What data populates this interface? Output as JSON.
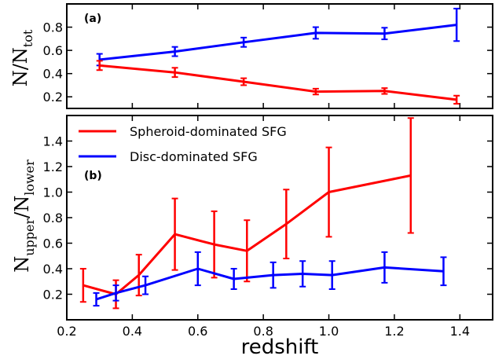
{
  "colors": {
    "spheroid": "#ff0000",
    "disc": "#0000ff",
    "axis": "#000000"
  },
  "xlabel": "redshift",
  "chart_data": [
    {
      "panel": "(a)",
      "type": "line",
      "ylabel_main": "N/N",
      "ylabel_sub": "tot",
      "xlim": [
        0.2,
        1.5
      ],
      "ylim": [
        0.1,
        1.0
      ],
      "xticks": [
        0.2,
        0.4,
        0.6,
        0.8,
        1.0,
        1.2,
        1.4
      ],
      "yticks": [
        0.2,
        0.4,
        0.6,
        0.8
      ],
      "ytick_labels": [
        "0.2",
        "0.4",
        "0.6",
        "0.8"
      ],
      "series": [
        {
          "key": "disc",
          "x": [
            0.3,
            0.53,
            0.74,
            0.96,
            1.17,
            1.39
          ],
          "y": [
            0.52,
            0.59,
            0.67,
            0.75,
            0.745,
            0.82
          ],
          "yerr": [
            0.05,
            0.04,
            0.04,
            0.05,
            0.05,
            0.14
          ]
        },
        {
          "key": "spheroid",
          "x": [
            0.3,
            0.53,
            0.74,
            0.96,
            1.17,
            1.39
          ],
          "y": [
            0.47,
            0.41,
            0.33,
            0.245,
            0.25,
            0.175
          ],
          "yerr": [
            0.04,
            0.04,
            0.03,
            0.025,
            0.025,
            0.035
          ]
        }
      ]
    },
    {
      "panel": "(b)",
      "type": "line",
      "ylabel_main": "N",
      "ylabel_sub1": "upper",
      "ylabel_mid": "/N",
      "ylabel_sub2": "lower",
      "xlim": [
        0.2,
        1.5
      ],
      "ylim": [
        0.0,
        1.6
      ],
      "xticks": [
        0.2,
        0.4,
        0.6,
        0.8,
        1.0,
        1.2,
        1.4
      ],
      "xtick_labels": [
        "0.2",
        "0.4",
        "0.6",
        "0.8",
        "1.0",
        "1.2",
        "1.4"
      ],
      "yticks": [
        0.2,
        0.4,
        0.6,
        0.8,
        1.0,
        1.2,
        1.4
      ],
      "ytick_labels": [
        "0.2",
        "0.4",
        "0.6",
        "0.8",
        "1.0",
        "1.2",
        "1.4"
      ],
      "legend": [
        {
          "key": "spheroid",
          "label": "Spheroid-dominated SFG"
        },
        {
          "key": "disc",
          "label": "Disc-dominated SFG"
        }
      ],
      "series": [
        {
          "key": "spheroid",
          "x": [
            0.25,
            0.35,
            0.42,
            0.53,
            0.65,
            0.75,
            0.87,
            1.0,
            1.25
          ],
          "y": [
            0.27,
            0.2,
            0.35,
            0.67,
            0.59,
            0.54,
            0.75,
            1.0,
            1.13
          ],
          "yerr": [
            0.13,
            0.11,
            0.16,
            0.28,
            0.26,
            0.24,
            0.27,
            0.35,
            0.45
          ]
        },
        {
          "key": "disc",
          "x": [
            0.29,
            0.35,
            0.44,
            0.6,
            0.71,
            0.83,
            0.92,
            1.01,
            1.17,
            1.35
          ],
          "y": [
            0.16,
            0.21,
            0.27,
            0.4,
            0.32,
            0.35,
            0.36,
            0.35,
            0.41,
            0.38
          ],
          "yerr": [
            0.05,
            0.06,
            0.07,
            0.13,
            0.08,
            0.1,
            0.1,
            0.11,
            0.12,
            0.11
          ]
        }
      ]
    }
  ]
}
